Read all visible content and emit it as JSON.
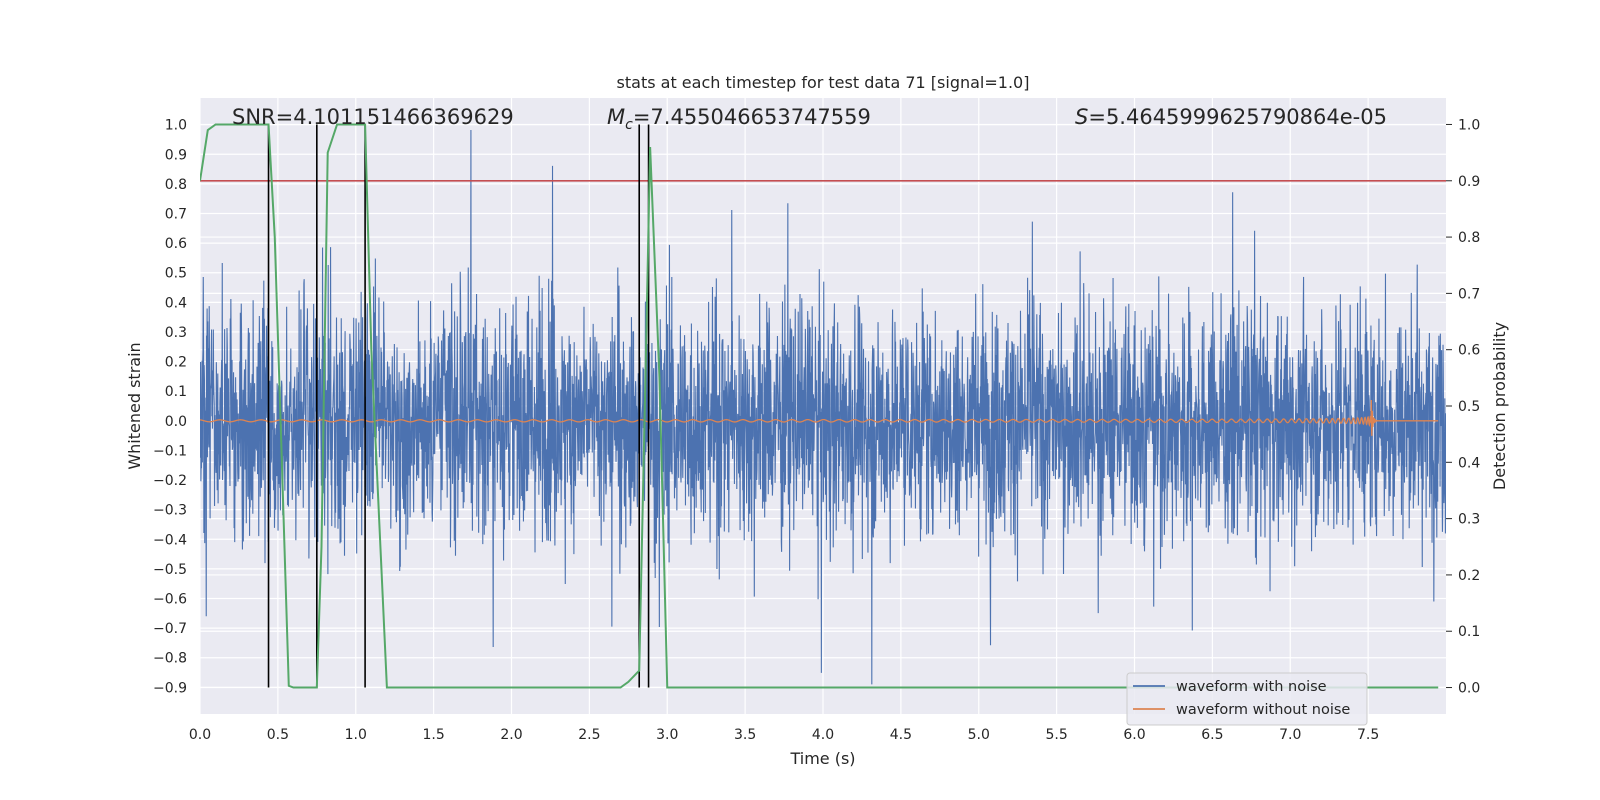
{
  "chart_data": {
    "type": "line",
    "title": "stats at each timestep for test data 71 [signal=1.0]",
    "xlabel": "Time (s)",
    "ylabel": "Whitened strain",
    "y2label": "Detection probability",
    "xlim": [
      0.0,
      8.0
    ],
    "ylim": [
      -0.99,
      1.09
    ],
    "y2lim": [
      -0.047,
      1.047
    ],
    "xticks": [
      "0.0",
      "0.5",
      "1.0",
      "1.5",
      "2.0",
      "2.5",
      "3.0",
      "3.5",
      "4.0",
      "4.5",
      "5.0",
      "5.5",
      "6.0",
      "6.5",
      "7.0",
      "7.5"
    ],
    "yticks": [
      "1.0",
      "0.9",
      "0.8",
      "0.7",
      "0.6",
      "0.5",
      "0.4",
      "0.3",
      "0.2",
      "0.1",
      "0.0",
      "-0.1",
      "-0.2",
      "-0.3",
      "-0.4",
      "-0.5",
      "-0.6",
      "-0.7",
      "-0.8",
      "-0.9"
    ],
    "y2ticks": [
      "1.0",
      "0.9",
      "0.8",
      "0.7",
      "0.6",
      "0.5",
      "0.4",
      "0.3",
      "0.2",
      "0.1",
      "0.0"
    ],
    "annotations": {
      "snr": "SNR=4.101151466369629",
      "mc_symbol": "M",
      "mc_sub": "c",
      "mc_value": "=7.455046653747559",
      "s_symbol": "S",
      "s_value": "=5.4645999625790864e-05"
    },
    "series": [
      {
        "name": "waveform with noise",
        "color": "#4c72b0",
        "axis": "left",
        "note": "dense noise, roughly within -0.9 to 1.0"
      },
      {
        "name": "waveform without noise",
        "color": "#dd8452",
        "axis": "left",
        "note": "chirp growing to ~0.1 amplitude, merging near t=7.52 s"
      },
      {
        "name": "detection probability",
        "color": "#55a868",
        "axis": "right",
        "x": [
          0.0,
          0.05,
          0.1,
          0.15,
          0.3,
          0.44,
          0.48,
          0.52,
          0.57,
          0.6,
          0.75,
          0.78,
          0.82,
          0.88,
          0.92,
          1.06,
          1.1,
          1.2,
          1.5,
          2.0,
          2.7,
          2.75,
          2.82,
          2.86,
          2.89,
          2.95,
          3.0,
          7.95
        ],
        "y": [
          0.9,
          0.99,
          1.0,
          1.0,
          1.0,
          1.0,
          0.8,
          0.45,
          0.003,
          0.0,
          0.0,
          0.25,
          0.95,
          1.0,
          1.0,
          1.0,
          0.6,
          0.0,
          0.0,
          0.0,
          0.0,
          0.01,
          0.03,
          0.55,
          0.96,
          0.55,
          0.0,
          0.0
        ]
      }
    ],
    "threshold_line": {
      "value": 0.9,
      "axis": "right",
      "color": "#c44e52"
    },
    "event_lines_x": [
      0.44,
      0.75,
      1.06,
      2.82,
      2.88
    ],
    "legend_position": "bottom-right"
  }
}
